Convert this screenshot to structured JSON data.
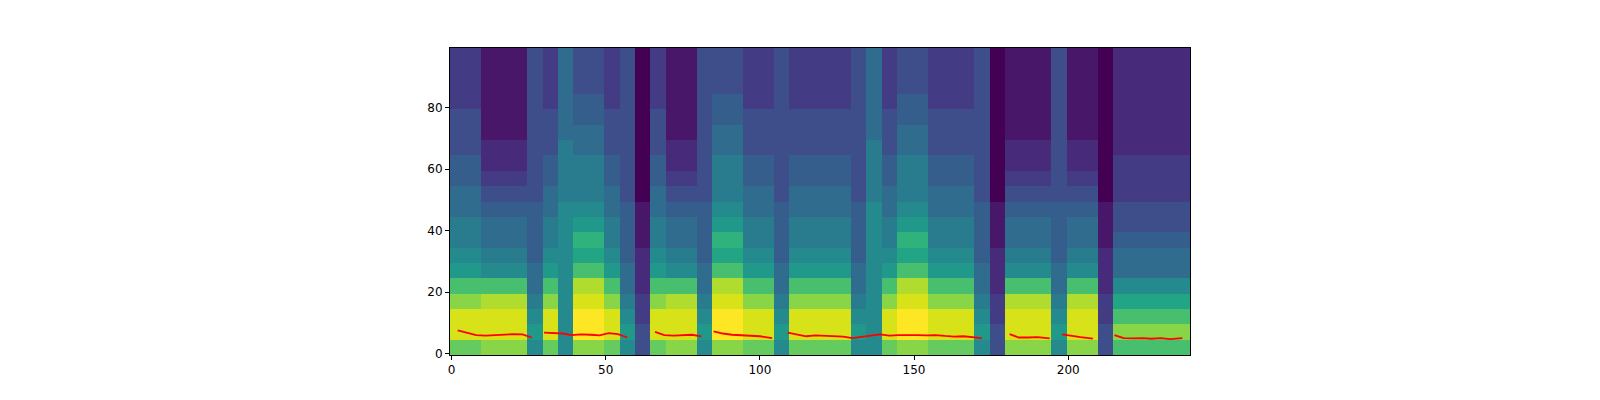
{
  "chart_data": {
    "type": "heatmap",
    "xlim": [
      -0.5,
      239.5
    ],
    "ylim": [
      -0.5,
      99.5
    ],
    "xticks": [
      0,
      50,
      100,
      150,
      200
    ],
    "yticks": [
      0,
      20,
      40,
      60,
      80
    ],
    "grid": false,
    "x": [
      2,
      7,
      12,
      17,
      22,
      27,
      32,
      37,
      42,
      47,
      52,
      57,
      62,
      67,
      72,
      77,
      82,
      87,
      92,
      97,
      102,
      107,
      112,
      117,
      122,
      127,
      132,
      137,
      142,
      147,
      152,
      157,
      162,
      167,
      172,
      177,
      182,
      187,
      192,
      197,
      202,
      207,
      212,
      217,
      222,
      227,
      232,
      237
    ],
    "y": [
      2,
      7,
      12,
      17,
      22,
      27,
      32,
      37,
      42,
      47,
      52,
      57,
      62,
      67,
      72,
      77,
      82,
      87,
      92,
      97
    ],
    "cells": [
      [
        7.5,
        7.5,
        8,
        8,
        8,
        5,
        7.5,
        5,
        8,
        8,
        7.5,
        5,
        3,
        7.5,
        8,
        8,
        5,
        8,
        8,
        7.5,
        7.5,
        5,
        7.5,
        7.5,
        7.5,
        7.5,
        5,
        5,
        7.5,
        8,
        8,
        7.5,
        7.5,
        7.5,
        5,
        3,
        8,
        8,
        8,
        5,
        8,
        8,
        3,
        7,
        7,
        7,
        7,
        7
      ],
      [
        9,
        9,
        9,
        9,
        9,
        5.5,
        9,
        5,
        9.5,
        9.5,
        9,
        5.5,
        3,
        9,
        9,
        9,
        5.5,
        9.5,
        9.5,
        9,
        9,
        5.5,
        9,
        9,
        9,
        9,
        5.5,
        5,
        9,
        9.5,
        9.5,
        9,
        9,
        9,
        5.5,
        3,
        9,
        9,
        9,
        5.5,
        9,
        9,
        3,
        8,
        8,
        8,
        8,
        8
      ],
      [
        9,
        9,
        9,
        9,
        9,
        5,
        9,
        5,
        9.5,
        9.5,
        9,
        5,
        2.5,
        9,
        9,
        9,
        5,
        9.5,
        9.5,
        9,
        9,
        5,
        9,
        9,
        9,
        9,
        5,
        5,
        9,
        9.5,
        9.5,
        9,
        9,
        9,
        5,
        2.5,
        9,
        9,
        9,
        5,
        9,
        9,
        2.5,
        7,
        7,
        7,
        7,
        7
      ],
      [
        8,
        8,
        8.5,
        8.5,
        8.5,
        4.5,
        8,
        5,
        9,
        9,
        8,
        4.5,
        2.5,
        8,
        8.5,
        8.5,
        4.5,
        9,
        9,
        8,
        8,
        4.5,
        8,
        8,
        8,
        8,
        4.5,
        5,
        8,
        9,
        9,
        8,
        8,
        8,
        4.5,
        2.5,
        8.5,
        8.5,
        8.5,
        4.5,
        8.5,
        8.5,
        2.5,
        6,
        6,
        6,
        6,
        6
      ],
      [
        7,
        7,
        7,
        7,
        7,
        4,
        7,
        5,
        8.5,
        8.5,
        7,
        4,
        2,
        7,
        7,
        7,
        4,
        8.5,
        8.5,
        7,
        7,
        4,
        7,
        7,
        7,
        7,
        4,
        5,
        7,
        8.5,
        8.5,
        7,
        7,
        7,
        4,
        2,
        7,
        7,
        7,
        4,
        7,
        7,
        2,
        5,
        5,
        5,
        5,
        5
      ],
      [
        5.5,
        5.5,
        5,
        5,
        5,
        4,
        5.5,
        5,
        7,
        7,
        5.5,
        4,
        2,
        5.5,
        5,
        5,
        4,
        7,
        7,
        5.5,
        5.5,
        4,
        5.5,
        5.5,
        5.5,
        5.5,
        4,
        5,
        5.5,
        7,
        7,
        5.5,
        5.5,
        5.5,
        4,
        2,
        5,
        5,
        5,
        4,
        5,
        5,
        2,
        4,
        4,
        4,
        4,
        4
      ],
      [
        5,
        5,
        4.5,
        4.5,
        4.5,
        3.5,
        5,
        5,
        6,
        6,
        5,
        3.5,
        2,
        5,
        4.5,
        4.5,
        3.5,
        6,
        6,
        5,
        5,
        3.5,
        5,
        5,
        5,
        5,
        3.5,
        5,
        5,
        6,
        6,
        5,
        5,
        5,
        3.5,
        2,
        4.5,
        4.5,
        4.5,
        3.5,
        4.5,
        4.5,
        2,
        4,
        4,
        4,
        4,
        4
      ],
      [
        4.5,
        4.5,
        4,
        4,
        4,
        3.5,
        4.5,
        5,
        6.5,
        6.5,
        4.5,
        3.5,
        1.5,
        4.5,
        4,
        4,
        3.5,
        6.5,
        6.5,
        4.5,
        4.5,
        3.5,
        4.5,
        4.5,
        4.5,
        4.5,
        3.5,
        5,
        4.5,
        6.5,
        6.5,
        4.5,
        4.5,
        4.5,
        3.5,
        1.5,
        4,
        4,
        4,
        3.5,
        4,
        4,
        1.5,
        3.5,
        3.5,
        3.5,
        3.5,
        3.5
      ],
      [
        4.5,
        4.5,
        4,
        4,
        4,
        3.5,
        4.5,
        5,
        5.5,
        5.5,
        4.5,
        3.5,
        1.5,
        4.5,
        4,
        4,
        3.5,
        5.5,
        5.5,
        4.5,
        4.5,
        3.5,
        4.5,
        4.5,
        4.5,
        4.5,
        3.5,
        5,
        4.5,
        5.5,
        5.5,
        4.5,
        4.5,
        4.5,
        3.5,
        1.5,
        4,
        4,
        4,
        3.5,
        4,
        4,
        1.5,
        3,
        3,
        3,
        3,
        3
      ],
      [
        4,
        4,
        3.5,
        3.5,
        3.5,
        3.5,
        4,
        5,
        5,
        5,
        4,
        3.5,
        1.5,
        4,
        3.5,
        3.5,
        3.5,
        5,
        5,
        4,
        4,
        3.5,
        4,
        4,
        4,
        4,
        3.5,
        5,
        4,
        5,
        5,
        4,
        4,
        4,
        3.5,
        1.5,
        3.5,
        3.5,
        3.5,
        3.5,
        3.5,
        3.5,
        1.5,
        3,
        3,
        3,
        3,
        3
      ],
      [
        4,
        4,
        3,
        3,
        3,
        3,
        4,
        4.5,
        4.5,
        4.5,
        4,
        3,
        1,
        4,
        3,
        3,
        3,
        4.5,
        4.5,
        4,
        4,
        3,
        4,
        4,
        4,
        4,
        3,
        4.5,
        4,
        4.5,
        4.5,
        4,
        4,
        4,
        3,
        1,
        3,
        3,
        3,
        3,
        3,
        3,
        1,
        2.5,
        2.5,
        2.5,
        2.5,
        2.5
      ],
      [
        3.5,
        3.5,
        2.5,
        2.5,
        2.5,
        3,
        3.5,
        4.5,
        4.5,
        4.5,
        3.5,
        3,
        1,
        3.5,
        2.5,
        2.5,
        3,
        4.5,
        4.5,
        3.5,
        3.5,
        3,
        3.5,
        3.5,
        3.5,
        3.5,
        3,
        4.5,
        3.5,
        4.5,
        4.5,
        3.5,
        3.5,
        3.5,
        3,
        1,
        2.5,
        2.5,
        2.5,
        3,
        2.5,
        2.5,
        1,
        2.5,
        2.5,
        2.5,
        2.5,
        2.5
      ],
      [
        3.5,
        3.5,
        2,
        2,
        2,
        3,
        3.5,
        4.5,
        4.5,
        4.5,
        3.5,
        3,
        1,
        3.5,
        2,
        2,
        3,
        4.5,
        4.5,
        3.5,
        3.5,
        3,
        3.5,
        3.5,
        3.5,
        3.5,
        3,
        4.5,
        3.5,
        4.5,
        4.5,
        3.5,
        3.5,
        3.5,
        3,
        1,
        2,
        2,
        2,
        3,
        2,
        2,
        1,
        2.5,
        2.5,
        2.5,
        2.5,
        2.5
      ],
      [
        3,
        3,
        2,
        2,
        2,
        3,
        3,
        4.5,
        4,
        4,
        3,
        3,
        1,
        3,
        2,
        2,
        3,
        4,
        4,
        3,
        3,
        3,
        3,
        3,
        3,
        3,
        3,
        4.5,
        3,
        4,
        4,
        3,
        3,
        3,
        3,
        1,
        2,
        2,
        2,
        3,
        2,
        2,
        1,
        2,
        2,
        2,
        2,
        2
      ],
      [
        3,
        3,
        1.5,
        1.5,
        1.5,
        3,
        3,
        4,
        4,
        4,
        3,
        3,
        1,
        3,
        1.5,
        1.5,
        3,
        4,
        4,
        3,
        3,
        3,
        3,
        3,
        3,
        3,
        3,
        4,
        3,
        4,
        4,
        3,
        3,
        3,
        3,
        1,
        1.5,
        1.5,
        1.5,
        3,
        1.5,
        1.5,
        1,
        2,
        2,
        2,
        2,
        2
      ],
      [
        3,
        3,
        1.5,
        1.5,
        1.5,
        3,
        3,
        4,
        3.5,
        3.5,
        3,
        3,
        1,
        3,
        1.5,
        1.5,
        3,
        3.5,
        3.5,
        3,
        3,
        3,
        3,
        3,
        3,
        3,
        3,
        4,
        3,
        3.5,
        3.5,
        3,
        3,
        3,
        3,
        1,
        1.5,
        1.5,
        1.5,
        3,
        1.5,
        1.5,
        1,
        2,
        2,
        2,
        2,
        2
      ],
      [
        2.5,
        2.5,
        1.5,
        1.5,
        1.5,
        3,
        2.5,
        4,
        3.5,
        3.5,
        2.5,
        3,
        1,
        2.5,
        1.5,
        1.5,
        3,
        3.5,
        3.5,
        2.5,
        2.5,
        3,
        2.5,
        2.5,
        2.5,
        2.5,
        3,
        4,
        2.5,
        3.5,
        3.5,
        2.5,
        2.5,
        2.5,
        3,
        1,
        1.5,
        1.5,
        1.5,
        3,
        1.5,
        1.5,
        1,
        2,
        2,
        2,
        2,
        2
      ],
      [
        2.5,
        2.5,
        1.5,
        1.5,
        1.5,
        3,
        2.5,
        4,
        3,
        3,
        2.5,
        3,
        1,
        2.5,
        1.5,
        1.5,
        3,
        3,
        3,
        2.5,
        2.5,
        3,
        2.5,
        2.5,
        2.5,
        2.5,
        3,
        4,
        2.5,
        3,
        3,
        2.5,
        2.5,
        2.5,
        3,
        1,
        1.5,
        1.5,
        1.5,
        3,
        1.5,
        1.5,
        1,
        2,
        2,
        2,
        2,
        2
      ],
      [
        2.5,
        2.5,
        1.5,
        1.5,
        1.5,
        3,
        2.5,
        4,
        3,
        3,
        2.5,
        3,
        1,
        2.5,
        1.5,
        1.5,
        3,
        3,
        3,
        2.5,
        2.5,
        3,
        2.5,
        2.5,
        2.5,
        2.5,
        3,
        4,
        2.5,
        3,
        3,
        2.5,
        2.5,
        2.5,
        3,
        1,
        1.5,
        1.5,
        1.5,
        3,
        1.5,
        1.5,
        1,
        2,
        2,
        2,
        2,
        2
      ],
      [
        2.5,
        2.5,
        1.5,
        1.5,
        1.5,
        3,
        2.5,
        4,
        3,
        3,
        2.5,
        3,
        1,
        2.5,
        1.5,
        1.5,
        3,
        3,
        3,
        2.5,
        2.5,
        3,
        2.5,
        2.5,
        2.5,
        2.5,
        3,
        4,
        2.5,
        3,
        3,
        2.5,
        2.5,
        2.5,
        3,
        1,
        1.5,
        1.5,
        1.5,
        3,
        1.5,
        1.5,
        1,
        2,
        2,
        2,
        2,
        2
      ]
    ],
    "series": [
      {
        "type": "line",
        "color": "red",
        "x": [
          2,
          5,
          8,
          11,
          14,
          17,
          20,
          23,
          26,
          28,
          30,
          33,
          36,
          39,
          42,
          45,
          48,
          51,
          54,
          57,
          60,
          66,
          69,
          72,
          75,
          78,
          81,
          83,
          85,
          88,
          91,
          94,
          97,
          100,
          104,
          106,
          109,
          112,
          115,
          118,
          121,
          124,
          127,
          130,
          133,
          136,
          139,
          142,
          145,
          148,
          151,
          154,
          157,
          160,
          163,
          166,
          169,
          172,
          176,
          181,
          184,
          187,
          190,
          194,
          196,
          198,
          201,
          204,
          208,
          211,
          215,
          218,
          221,
          224,
          227,
          230,
          233,
          237
        ],
        "values": [
          7.5,
          6.8,
          6.0,
          5.8,
          6.0,
          6.3,
          6.3,
          6.2,
          5.2,
          null,
          6.8,
          6.6,
          6.5,
          6.0,
          6.2,
          6.1,
          5.9,
          6.6,
          6.3,
          5.2,
          null,
          7.0,
          6.0,
          5.8,
          6.0,
          6.1,
          5.6,
          null,
          7.2,
          6.5,
          6.1,
          5.9,
          5.7,
          5.6,
          5.0,
          null,
          6.8,
          6.2,
          5.6,
          5.9,
          5.8,
          5.6,
          5.5,
          5.0,
          5.3,
          5.8,
          6.2,
          5.8,
          6.0,
          6.1,
          6.0,
          5.9,
          6.0,
          5.7,
          5.5,
          5.6,
          5.2,
          5.0,
          null,
          6.3,
          5.2,
          5.2,
          5.3,
          4.9,
          null,
          6.2,
          5.7,
          5.3,
          4.8,
          null,
          6.0,
          5.0,
          4.9,
          5.0,
          4.8,
          5.0,
          4.7,
          5.0
        ]
      }
    ]
  }
}
